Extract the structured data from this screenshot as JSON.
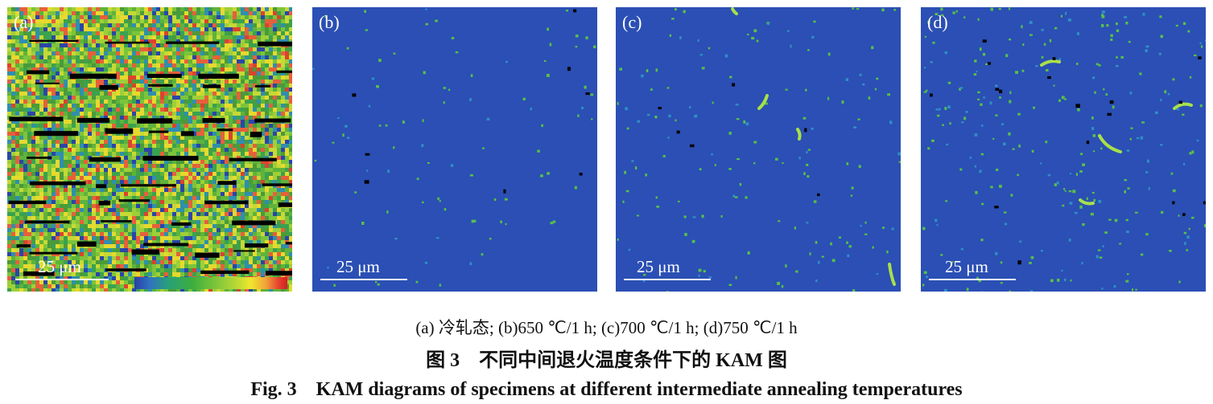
{
  "panels": [
    {
      "label": "(a)",
      "scale": "25 μm",
      "state": "cold-rolled, high KAM, mixed green/yellow/red with black bands"
    },
    {
      "label": "(b)",
      "scale": "25 μm",
      "state": "mostly blue, sparse green dots"
    },
    {
      "label": "(c)",
      "scale": "25 μm",
      "state": "mostly blue, scattered green dots and short arcs"
    },
    {
      "label": "(d)",
      "scale": "25 μm",
      "state": "mostly blue, green arcs and black specks"
    }
  ],
  "colors": {
    "kam_low": "#2b4fb4",
    "kam_mid": "#6cbf3b",
    "kam_high": "#e23a2a",
    "unindexed": "#000000"
  },
  "captions": {
    "sub": "(a) 冷轧态; (b)650 ℃/1 h; (c)700 ℃/1 h; (d)750 ℃/1 h",
    "cn": "图 3　不同中间退火温度条件下的 KAM 图",
    "en": "Fig. 3　KAM diagrams of specimens at different intermediate annealing temperatures"
  }
}
